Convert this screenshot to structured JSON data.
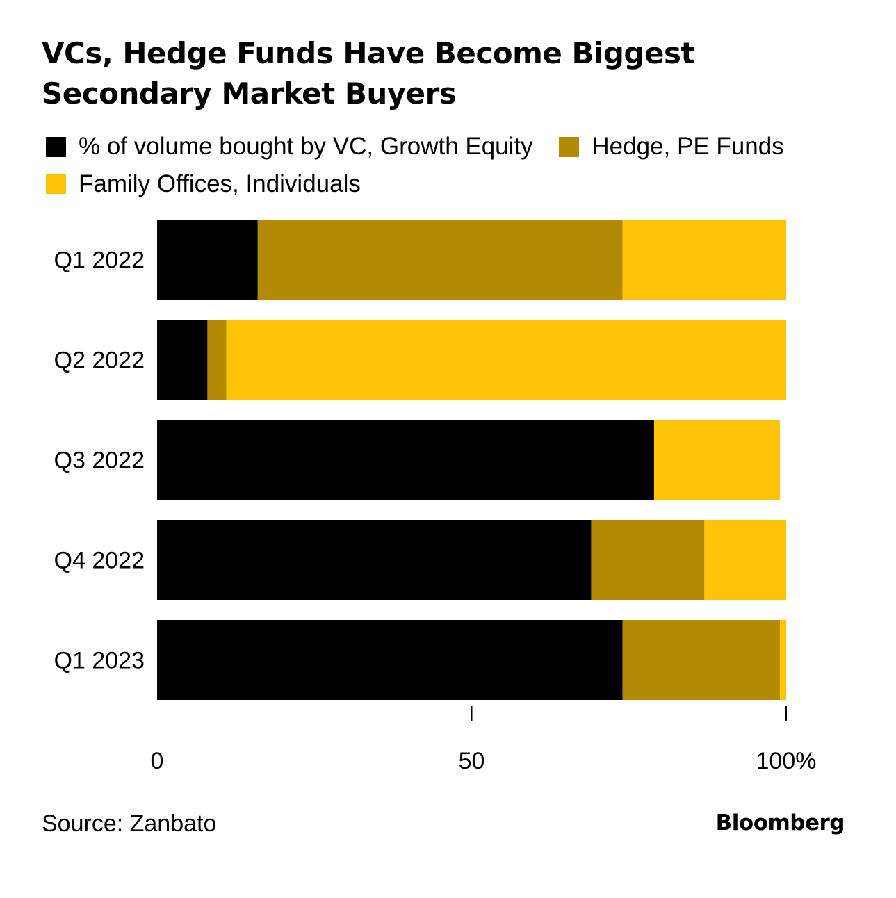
{
  "title": "VCs, Hedge Funds Have Become Biggest Secondary Market Buyers",
  "legend": [
    {
      "label": "% of volume bought by VC, Growth Equity",
      "color": "#000000"
    },
    {
      "label": "Hedge, PE Funds",
      "color": "#b38a06"
    },
    {
      "label": "Family Offices, Individuals",
      "color": "#ffc40a"
    }
  ],
  "chart_data": {
    "type": "bar",
    "orientation": "horizontal",
    "stacked": true,
    "categories": [
      "Q1 2022",
      "Q2 2022",
      "Q3 2022",
      "Q4 2022",
      "Q1 2023"
    ],
    "series": [
      {
        "name": "% of volume bought by VC, Growth Equity",
        "color": "#000000",
        "values": [
          16,
          8,
          79,
          69,
          74
        ]
      },
      {
        "name": "Hedge, PE Funds",
        "color": "#b38a06",
        "values": [
          58,
          3,
          0,
          18,
          25
        ]
      },
      {
        "name": "Family Offices, Individuals",
        "color": "#ffc40a",
        "values": [
          26,
          89,
          20,
          13,
          1
        ]
      }
    ],
    "xlim": [
      0,
      100
    ],
    "xticks": [
      0,
      50,
      100
    ],
    "xtick_labels": [
      "0",
      "50",
      "100%"
    ],
    "grid": false,
    "legend_position": "top"
  },
  "footer": {
    "source": "Source: Zanbato",
    "brand": "Bloomberg"
  }
}
